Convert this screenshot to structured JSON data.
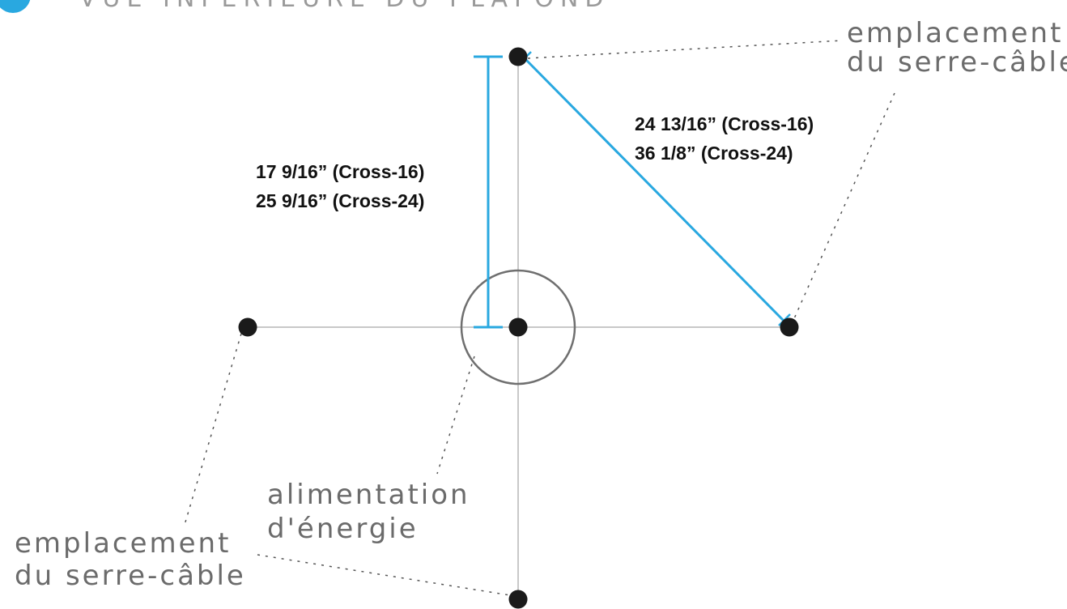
{
  "header": {
    "partial_title": "VUE INFÉRIEURE DU PLAFOND"
  },
  "labels": {
    "top_right_line1": "emplacement",
    "top_right_line2": "du serre-câble",
    "bottom_left_line1": "emplacement",
    "bottom_left_line2": "du serre-câble",
    "power_line1": "alimentation",
    "power_line2": "d'énergie"
  },
  "dimensions": {
    "vertical_cross16": "17 9/16” (Cross-16)",
    "vertical_cross24": "25 9/16” (Cross-24)",
    "diagonal_cross16": "24 13/16” (Cross-16)",
    "diagonal_cross24": "36 1/8” (Cross-24)"
  },
  "colors": {
    "accent": "#29a8e0",
    "axis": "#c8c8c8",
    "circle": "#6f6f6f",
    "point": "#1a1a1a",
    "leader": "#555555"
  }
}
